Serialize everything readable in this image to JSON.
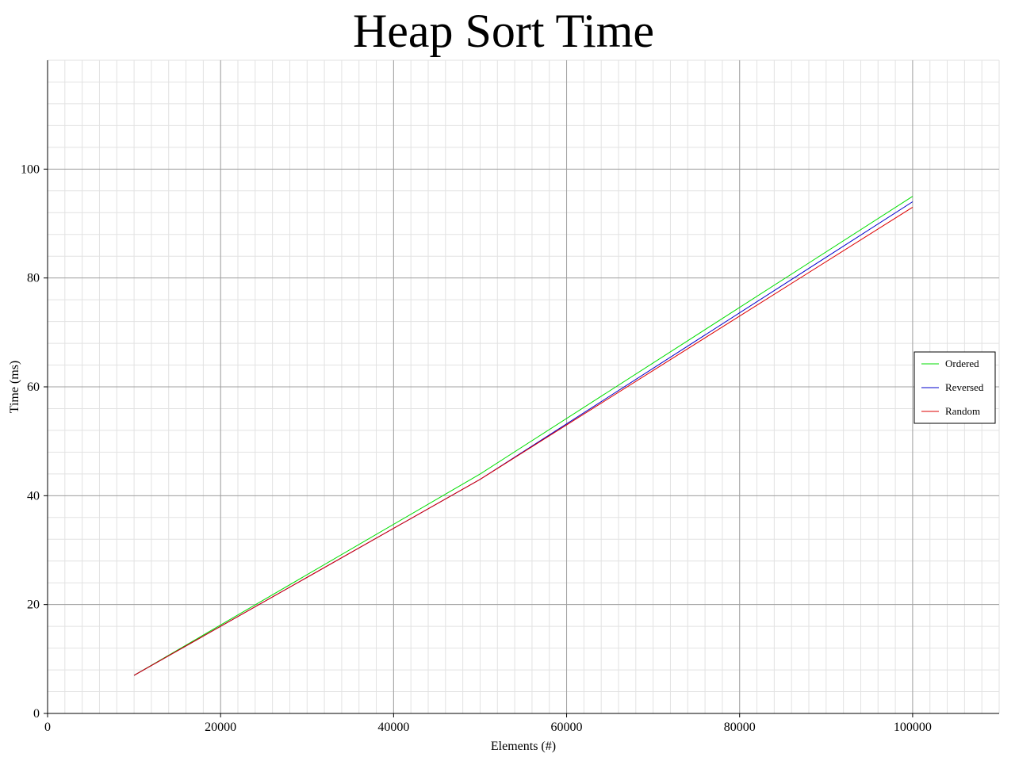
{
  "chart_data": {
    "type": "line",
    "title": "Heap Sort Time",
    "xlabel": "Elements (#)",
    "ylabel": "Time (ms)",
    "xlim": [
      0,
      110000
    ],
    "ylim": [
      0,
      120
    ],
    "x_ticks": [
      0,
      20000,
      40000,
      60000,
      80000,
      100000
    ],
    "y_ticks": [
      0,
      20,
      40,
      60,
      80,
      100
    ],
    "grid": true,
    "legend_position": "right",
    "x": [
      10000,
      50000,
      100000
    ],
    "series": [
      {
        "name": "Ordered",
        "color": "#00dd00",
        "values": [
          7,
          44,
          95
        ]
      },
      {
        "name": "Reversed",
        "color": "#0000cc",
        "values": [
          7,
          43,
          94
        ]
      },
      {
        "name": "Random",
        "color": "#dd0000",
        "values": [
          7,
          43,
          93
        ]
      }
    ]
  }
}
